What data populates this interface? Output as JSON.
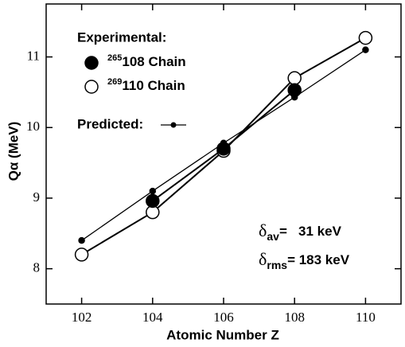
{
  "chart_data": {
    "type": "line",
    "x_label": "Atomic Number Z",
    "y_label": "Qα (MeV)",
    "legend_title": "Experimental:",
    "x": [
      102,
      104,
      106,
      108,
      110
    ],
    "series": [
      {
        "name_superscript": "265",
        "name": "108 Chain",
        "color": "#000000",
        "marker": "filled",
        "values": [
          null,
          8.96,
          9.7,
          10.53,
          null
        ]
      },
      {
        "name_superscript": "269",
        "name": "110 Chain",
        "color": "#000000",
        "marker": "open",
        "values": [
          8.2,
          8.8,
          9.67,
          10.7,
          11.27
        ]
      },
      {
        "name": "Predicted:",
        "color": "#000000",
        "marker": "dot",
        "values": [
          8.4,
          9.1,
          9.78,
          10.43,
          11.1
        ]
      }
    ],
    "annotations": [
      {
        "symbol": "δ",
        "subscript": "av",
        "text": "=   31 keV"
      },
      {
        "symbol": "δ",
        "subscript": "rms",
        "text": "= 183 keV"
      }
    ],
    "xlim": [
      101,
      111
    ],
    "ylim": [
      7.5,
      11.75
    ],
    "xticks": [
      102,
      104,
      106,
      108,
      110
    ],
    "yticks": [
      8,
      9,
      10,
      11
    ],
    "grid": false
  }
}
